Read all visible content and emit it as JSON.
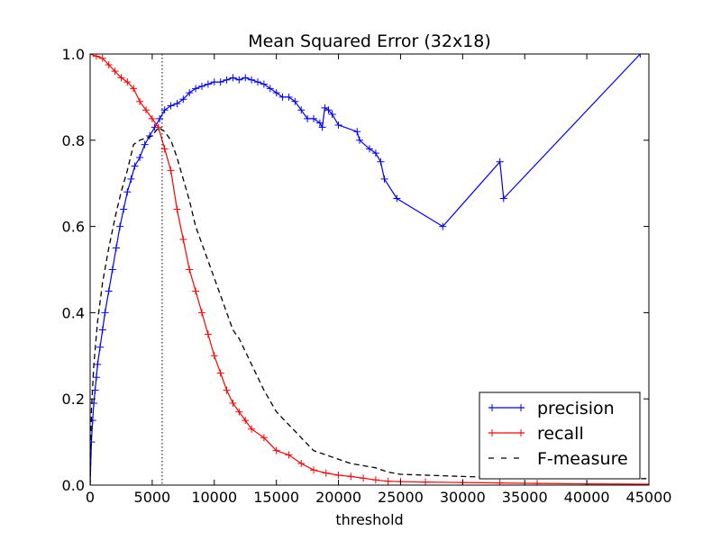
{
  "chart_data": {
    "type": "line",
    "title": "Mean Squared Error (32x18)",
    "xlabel": "threshold",
    "ylabel": "",
    "xlim": [
      0,
      45000
    ],
    "ylim": [
      0,
      1.0
    ],
    "xticks": [
      0,
      5000,
      10000,
      15000,
      20000,
      25000,
      30000,
      35000,
      40000,
      45000
    ],
    "xtick_labels": [
      "0",
      "5000",
      "10000",
      "15000",
      "20000",
      "25000",
      "30000",
      "35000",
      "40000",
      "45000"
    ],
    "yticks": [
      0.0,
      0.2,
      0.4,
      0.6,
      0.8,
      1.0
    ],
    "ytick_labels": [
      "0.0",
      "0.2",
      "0.4",
      "0.6",
      "0.8",
      "1.0"
    ],
    "grid": false,
    "legend_position": "lower-right",
    "vertical_reference_line": {
      "x": 5800,
      "style": "dotted",
      "color": "#000000"
    },
    "series": [
      {
        "name": "precision",
        "color": "#0000ff",
        "line_style": "solid",
        "marker": "+",
        "x": [
          0,
          100,
          200,
          300,
          400,
          500,
          600,
          800,
          1000,
          1200,
          1500,
          1800,
          2100,
          2400,
          2700,
          3000,
          3300,
          3600,
          4000,
          4400,
          4800,
          5200,
          5600,
          6000,
          6500,
          7000,
          7500,
          8000,
          8500,
          9000,
          9500,
          10000,
          10500,
          11000,
          11500,
          12000,
          12500,
          13000,
          13500,
          14000,
          14500,
          15000,
          15500,
          16000,
          16500,
          17000,
          17500,
          18000,
          18500,
          18700,
          18900,
          19200,
          19500,
          20000,
          21500,
          21700,
          22500,
          23000,
          23400,
          23700,
          24700,
          28400,
          33000,
          33300,
          44300
        ],
        "y": [
          0.0,
          0.1,
          0.15,
          0.19,
          0.22,
          0.25,
          0.28,
          0.32,
          0.36,
          0.4,
          0.45,
          0.5,
          0.55,
          0.6,
          0.64,
          0.68,
          0.71,
          0.74,
          0.76,
          0.79,
          0.81,
          0.83,
          0.85,
          0.87,
          0.88,
          0.885,
          0.895,
          0.91,
          0.92,
          0.925,
          0.93,
          0.935,
          0.935,
          0.94,
          0.945,
          0.94,
          0.945,
          0.94,
          0.935,
          0.93,
          0.92,
          0.91,
          0.9,
          0.9,
          0.89,
          0.87,
          0.85,
          0.85,
          0.84,
          0.83,
          0.875,
          0.87,
          0.86,
          0.835,
          0.82,
          0.8,
          0.78,
          0.77,
          0.75,
          0.71,
          0.665,
          0.6,
          0.75,
          0.665,
          1.0
        ]
      },
      {
        "name": "recall",
        "color": "#ff0000",
        "line_style": "solid",
        "marker": "+",
        "x": [
          0,
          500,
          1000,
          1500,
          2000,
          2500,
          3000,
          3500,
          4000,
          4500,
          5000,
          5500,
          6000,
          6500,
          7000,
          7500,
          8000,
          8500,
          9000,
          9500,
          10000,
          10500,
          11000,
          11500,
          12000,
          12500,
          13000,
          14000,
          15000,
          16000,
          17000,
          18000,
          19000,
          20000,
          21000,
          22000,
          23000,
          24000,
          25000,
          27000,
          30000,
          33000,
          36000,
          40000,
          45000
        ],
        "y": [
          1.0,
          0.995,
          0.99,
          0.975,
          0.96,
          0.945,
          0.935,
          0.92,
          0.89,
          0.87,
          0.85,
          0.83,
          0.78,
          0.73,
          0.64,
          0.57,
          0.5,
          0.45,
          0.4,
          0.35,
          0.3,
          0.26,
          0.22,
          0.19,
          0.17,
          0.15,
          0.13,
          0.11,
          0.08,
          0.07,
          0.05,
          0.035,
          0.028,
          0.023,
          0.02,
          0.016,
          0.012,
          0.009,
          0.008,
          0.007,
          0.006,
          0.005,
          0.004,
          0.003,
          0.002
        ]
      },
      {
        "name": "F-measure",
        "color": "#000000",
        "line_style": "dashed",
        "marker": "none",
        "x": [
          0,
          100,
          300,
          600,
          1000,
          1500,
          2000,
          2500,
          3000,
          3500,
          4000,
          4500,
          5000,
          5500,
          6000,
          6500,
          7000,
          7500,
          8000,
          8500,
          9000,
          9500,
          10000,
          10500,
          11000,
          11500,
          12000,
          12500,
          13000,
          14000,
          15000,
          16000,
          17000,
          18000,
          19000,
          20000,
          21000,
          22000,
          23000,
          23500,
          24000,
          25000,
          30000,
          33000,
          36000,
          40000,
          45000
        ],
        "y": [
          0.0,
          0.17,
          0.28,
          0.38,
          0.47,
          0.55,
          0.62,
          0.68,
          0.73,
          0.79,
          0.8,
          0.805,
          0.81,
          0.83,
          0.82,
          0.8,
          0.76,
          0.71,
          0.66,
          0.6,
          0.56,
          0.52,
          0.48,
          0.44,
          0.4,
          0.36,
          0.34,
          0.31,
          0.28,
          0.22,
          0.17,
          0.14,
          0.11,
          0.08,
          0.07,
          0.06,
          0.05,
          0.045,
          0.04,
          0.035,
          0.03,
          0.025,
          0.02,
          0.018,
          0.016,
          0.015,
          0.015
        ]
      }
    ]
  }
}
